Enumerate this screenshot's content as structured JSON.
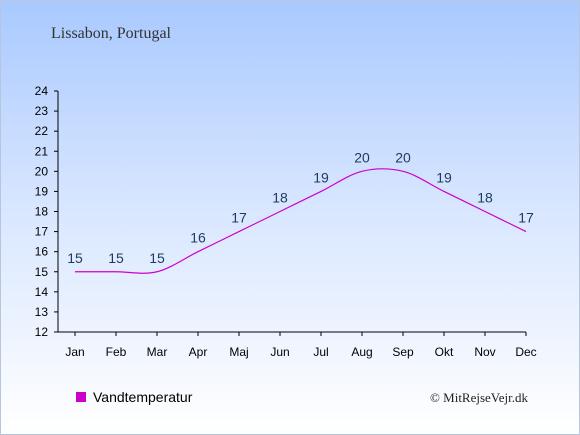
{
  "chart_data": {
    "type": "line",
    "title": "Lissabon, Portugal",
    "categories": [
      "Jan",
      "Feb",
      "Mar",
      "Apr",
      "Maj",
      "Jun",
      "Jul",
      "Aug",
      "Sep",
      "Okt",
      "Nov",
      "Dec"
    ],
    "series": [
      {
        "name": "Vandtemperatur",
        "values": [
          15,
          15,
          15,
          16,
          17,
          18,
          19,
          20,
          20,
          19,
          18,
          17
        ],
        "color": "#cc00cc"
      }
    ],
    "ylim": [
      12,
      24
    ],
    "yticks": [
      12,
      13,
      14,
      15,
      16,
      17,
      18,
      19,
      20,
      21,
      22,
      23,
      24
    ],
    "grid": false,
    "legend_position": "bottom-left",
    "credit": "© MitRejseVejr.dk"
  }
}
